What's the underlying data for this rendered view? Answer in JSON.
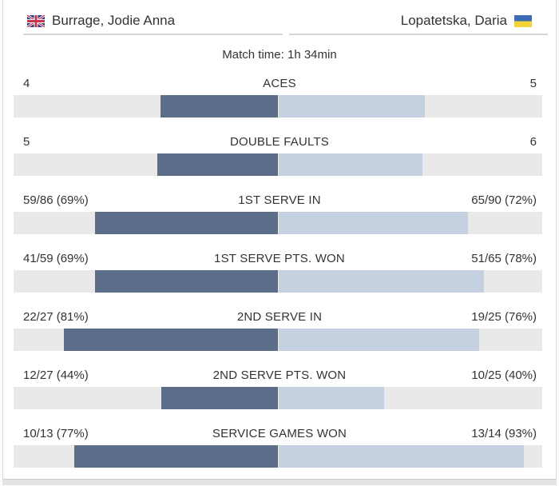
{
  "header": {
    "home": {
      "name": "Burrage, Jodie Anna",
      "flag_icon": "uk-flag-icon"
    },
    "away": {
      "name": "Lopatetska, Daria",
      "flag_icon": "ukraine-flag-icon"
    }
  },
  "match_time": {
    "text": "Match time: 1h 34min"
  },
  "stats": {
    "rows": [
      {
        "label": "ACES",
        "home_value": "4",
        "away_value": "5",
        "home_bar_pct": 44.4,
        "away_bar_pct": 55.6
      },
      {
        "label": "DOUBLE FAULTS",
        "home_value": "5",
        "away_value": "6",
        "home_bar_pct": 45.5,
        "away_bar_pct": 54.5
      },
      {
        "label": "1ST SERVE IN",
        "home_value": "59/86 (69%)",
        "away_value": "65/90 (72%)",
        "home_bar_pct": 69,
        "away_bar_pct": 72
      },
      {
        "label": "1ST SERVE PTS. WON",
        "home_value": "41/59 (69%)",
        "away_value": "51/65 (78%)",
        "home_bar_pct": 69,
        "away_bar_pct": 78
      },
      {
        "label": "2ND SERVE IN",
        "home_value": "22/27 (81%)",
        "away_value": "19/25 (76%)",
        "home_bar_pct": 81,
        "away_bar_pct": 76
      },
      {
        "label": "2ND SERVE PTS. WON",
        "home_value": "12/27 (44%)",
        "away_value": "10/25 (40%)",
        "home_bar_pct": 44,
        "away_bar_pct": 40
      },
      {
        "label": "SERVICE GAMES WON",
        "home_value": "10/13 (77%)",
        "away_value": "13/14 (93%)",
        "home_bar_pct": 77,
        "away_bar_pct": 93
      }
    ]
  },
  "colors": {
    "home_bar": "#5b6d89",
    "away_bar": "#c5d0e0",
    "bar_track": "#e9e9e9",
    "text": "#333333",
    "ukraine_flag_blue": "#3c6cb4",
    "ukraine_flag_yellow": "#f2d338",
    "uk_flag_navy": "#2c3e80",
    "uk_flag_red": "#c8344e"
  }
}
